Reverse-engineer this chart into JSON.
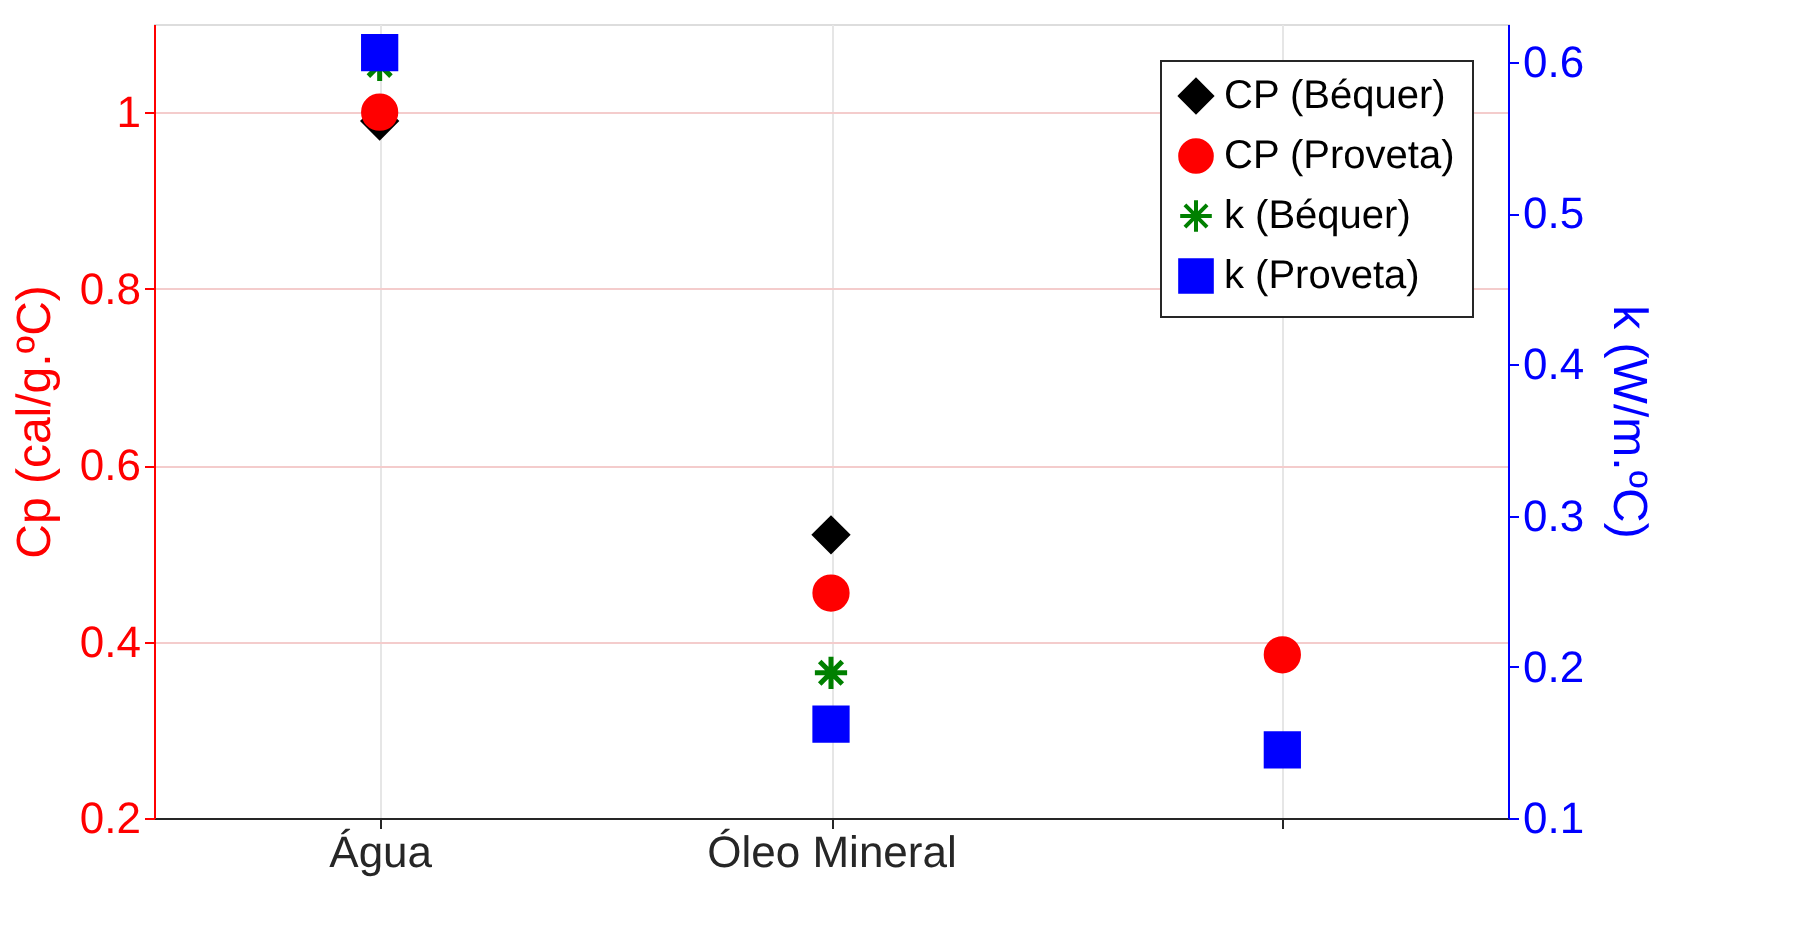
{
  "chart_data": {
    "type": "scatter",
    "categories": [
      "Água",
      "Óleo Mineral",
      null
    ],
    "ylabel": "Cp (cal/g.ºC)",
    "y2label": "k (W/m.ºC)",
    "ylim": [
      0.2,
      1.1
    ],
    "yticks": [
      0.2,
      0.4,
      0.6,
      0.8,
      1
    ],
    "y2lim": [
      0.1,
      0.625
    ],
    "y2ticks": [
      0.1,
      0.2,
      0.3,
      0.4,
      0.5,
      0.6
    ],
    "grid": true,
    "legend": "top right",
    "series": [
      {
        "name": "CP (Béquer)",
        "color": "#000000",
        "marker": "diamond",
        "values": [
          0.99,
          0.521,
          null
        ]
      },
      {
        "name": "CP (Proveta)",
        "color": "#ff0000",
        "marker": "circle",
        "values": [
          1.0,
          0.455,
          0.385
        ]
      },
      {
        "name": "k (Béquer)",
        "color": "#008000",
        "marker": "cross",
        "axis": "y2",
        "values": [
          0.598,
          0.196,
          null
        ]
      },
      {
        "name": "k (Proveta)",
        "color": "#0000ff",
        "marker": "square",
        "axis": "y2",
        "values": [
          0.606,
          0.162,
          0.145
        ]
      }
    ]
  }
}
